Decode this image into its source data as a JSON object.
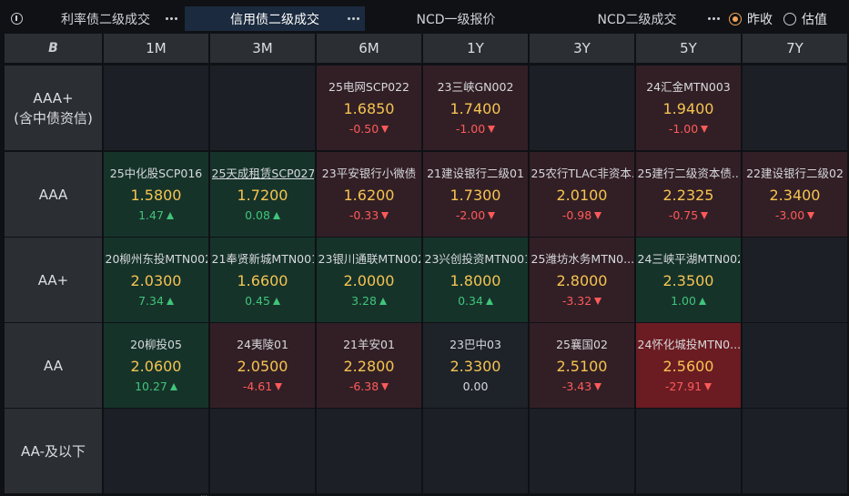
{
  "tabs": [
    {
      "label": "利率债二级成交",
      "active": false
    },
    {
      "label": "信用债二级成交",
      "active": true
    },
    {
      "label": "NCD一级报价",
      "active": false
    },
    {
      "label": "NCD二级成交",
      "active": false
    }
  ],
  "radios": [
    {
      "label": "昨收",
      "checked": true
    },
    {
      "label": "估值",
      "checked": false
    }
  ],
  "grid": {
    "corner_label": "B",
    "columns": [
      "1M",
      "3M",
      "6M",
      "1Y",
      "3Y",
      "5Y",
      "7Y"
    ],
    "rows": [
      {
        "label_lines": [
          "AAA+",
          "(含中债资信)"
        ],
        "cells": [
          null,
          null,
          {
            "name": "25电网SCP022",
            "price": "1.6850",
            "change": "-0.50",
            "dir": "down",
            "tone": "down"
          },
          {
            "name": "23三峡GN002",
            "price": "1.7400",
            "change": "-1.00",
            "dir": "down",
            "tone": "down"
          },
          null,
          {
            "name": "24汇金MTN003",
            "price": "1.9400",
            "change": "-1.00",
            "dir": "down",
            "tone": "down"
          },
          null
        ]
      },
      {
        "label_lines": [
          "AAA"
        ],
        "cells": [
          {
            "name": "25中化股SCP016",
            "price": "1.5800",
            "change": "1.47",
            "dir": "up",
            "tone": "up"
          },
          {
            "name": "25天成租赁SCP027",
            "price": "1.7200",
            "change": "0.08",
            "dir": "up",
            "tone": "up",
            "underline": true
          },
          {
            "name": "23平安银行小微债",
            "price": "1.6200",
            "change": "-0.33",
            "dir": "down",
            "tone": "down"
          },
          {
            "name": "21建设银行二级01",
            "price": "1.7300",
            "change": "-2.00",
            "dir": "down",
            "tone": "down"
          },
          {
            "name": "25农行TLAC非资本...",
            "price": "2.0100",
            "change": "-0.98",
            "dir": "down",
            "tone": "down"
          },
          {
            "name": "25建行二级资本债...",
            "price": "2.2325",
            "change": "-0.75",
            "dir": "down",
            "tone": "down"
          },
          {
            "name": "22建设银行二级02",
            "price": "2.3400",
            "change": "-3.00",
            "dir": "down",
            "tone": "down"
          }
        ]
      },
      {
        "label_lines": [
          "AA+"
        ],
        "cells": [
          {
            "name": "20柳州东投MTN002",
            "price": "2.0300",
            "change": "7.34",
            "dir": "up",
            "tone": "up"
          },
          {
            "name": "21奉贤新城MTN001",
            "price": "1.6600",
            "change": "0.45",
            "dir": "up",
            "tone": "up"
          },
          {
            "name": "23银川通联MTN002",
            "price": "2.0000",
            "change": "3.28",
            "dir": "up",
            "tone": "up"
          },
          {
            "name": "23兴创投资MTN001",
            "price": "1.8000",
            "change": "0.34",
            "dir": "up",
            "tone": "up"
          },
          {
            "name": "25潍坊水务MTN0...",
            "price": "2.8000",
            "change": "-3.32",
            "dir": "down",
            "tone": "down"
          },
          {
            "name": "24三峡平湖MTN002",
            "price": "2.3500",
            "change": "1.00",
            "dir": "up",
            "tone": "up"
          },
          null
        ]
      },
      {
        "label_lines": [
          "AA"
        ],
        "cells": [
          {
            "name": "20柳投05",
            "price": "2.0600",
            "change": "10.27",
            "dir": "up",
            "tone": "up"
          },
          {
            "name": "24夷陵01",
            "price": "2.0500",
            "change": "-4.61",
            "dir": "down",
            "tone": "down"
          },
          {
            "name": "21羊安01",
            "price": "2.2800",
            "change": "-6.38",
            "dir": "down",
            "tone": "down"
          },
          {
            "name": "23巴中03",
            "price": "2.3300",
            "change": "0.00",
            "dir": "none",
            "tone": "flat"
          },
          {
            "name": "25襄国02",
            "price": "2.5100",
            "change": "-3.43",
            "dir": "down",
            "tone": "down"
          },
          {
            "name": "24怀化城投MTN0...",
            "price": "2.5600",
            "change": "-27.91",
            "dir": "down",
            "tone": "hot"
          },
          null
        ]
      },
      {
        "label_lines": [
          "AA-及以下"
        ],
        "cells": [
          null,
          null,
          null,
          null,
          null,
          null,
          null
        ]
      }
    ]
  }
}
